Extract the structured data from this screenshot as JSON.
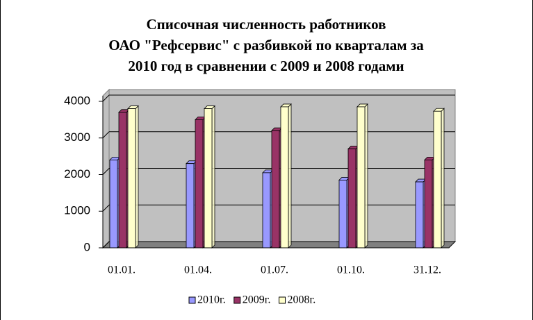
{
  "chart_data": {
    "type": "bar3d",
    "title": [
      "Списочная численность работников",
      "ОАО \"Рефсервис\" с разбивкой по кварталам за",
      "2010 год в сравнении с 2009 и 2008 годами"
    ],
    "categories": [
      "01.01.",
      "01.04.",
      "01.07.",
      "01.10.",
      "31.12."
    ],
    "series": [
      {
        "name": "2010г.",
        "color": "#9999ff",
        "values": [
          2400,
          2300,
          2050,
          1850,
          1800
        ]
      },
      {
        "name": "2009г.",
        "color": "#993366",
        "values": [
          3700,
          3500,
          3200,
          2700,
          2400
        ]
      },
      {
        "name": "2008г.",
        "color": "#ffffcc",
        "values": [
          3800,
          3800,
          3850,
          3850,
          3730
        ]
      }
    ],
    "ylim": [
      0,
      4000
    ],
    "yticks": [
      0,
      1000,
      2000,
      3000,
      4000
    ],
    "grid": true,
    "legend": "bottom"
  }
}
